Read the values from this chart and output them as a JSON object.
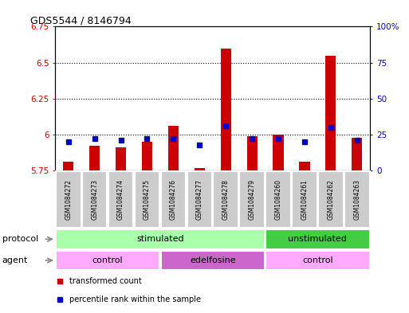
{
  "title": "GDS5544 / 8146794",
  "samples": [
    "GSM1084272",
    "GSM1084273",
    "GSM1084274",
    "GSM1084275",
    "GSM1084276",
    "GSM1084277",
    "GSM1084278",
    "GSM1084279",
    "GSM1084260",
    "GSM1084261",
    "GSM1084262",
    "GSM1084263"
  ],
  "transformed_count": [
    5.81,
    5.92,
    5.91,
    5.95,
    6.06,
    5.77,
    6.6,
    5.99,
    6.0,
    5.81,
    6.55,
    5.98
  ],
  "percentile_rank": [
    20,
    22,
    21,
    22,
    22,
    18,
    31,
    22,
    22,
    20,
    30,
    21
  ],
  "ylim_left": [
    5.75,
    6.75
  ],
  "ylim_right": [
    0,
    100
  ],
  "yticks_left": [
    5.75,
    6.0,
    6.25,
    6.5,
    6.75
  ],
  "ytick_labels_left": [
    "5.75",
    "6",
    "6.25",
    "6.5",
    "6.75"
  ],
  "yticks_right": [
    0,
    25,
    50,
    75,
    100
  ],
  "ytick_labels_right": [
    "0",
    "25",
    "50",
    "75",
    "100%"
  ],
  "baseline": 5.75,
  "bar_color": "#cc0000",
  "dot_color": "#0000cc",
  "bar_width": 0.4,
  "protocol_groups": [
    {
      "label": "stimulated",
      "start": 0,
      "end": 7,
      "color": "#aaffaa"
    },
    {
      "label": "unstimulated",
      "start": 8,
      "end": 11,
      "color": "#44cc44"
    }
  ],
  "agent_groups": [
    {
      "label": "control",
      "start": 0,
      "end": 3,
      "color": "#ffaaff"
    },
    {
      "label": "edelfosine",
      "start": 4,
      "end": 7,
      "color": "#cc66cc"
    },
    {
      "label": "control",
      "start": 8,
      "end": 11,
      "color": "#ffaaff"
    }
  ],
  "legend_items": [
    {
      "label": "transformed count",
      "color": "#cc0000"
    },
    {
      "label": "percentile rank within the sample",
      "color": "#0000cc"
    }
  ],
  "protocol_label": "protocol",
  "agent_label": "agent",
  "bg_color": "#ffffff",
  "label_box_color": "#cccccc",
  "label_box_edge": "#aaaaaa",
  "grid_yticks": [
    6.0,
    6.25,
    6.5
  ],
  "title_fontsize": 9,
  "tick_fontsize": 7.5,
  "sample_fontsize": 5.5,
  "row_fontsize": 8,
  "legend_fontsize": 7
}
